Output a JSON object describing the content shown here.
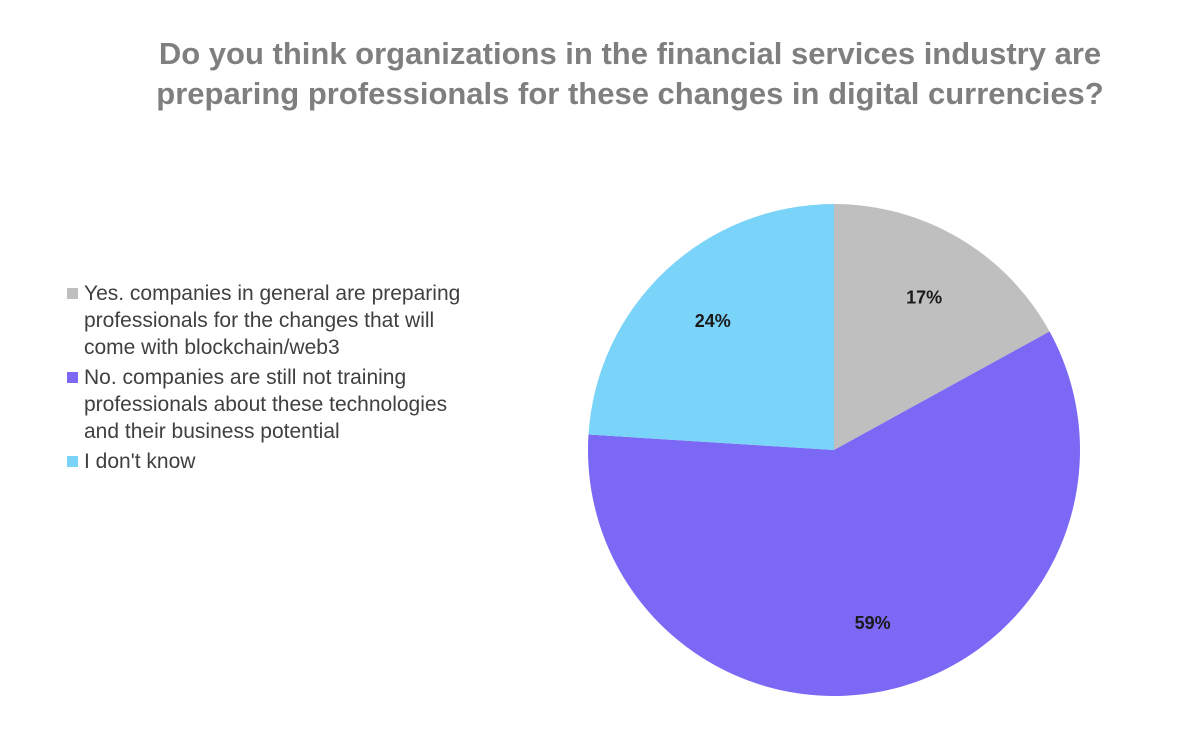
{
  "chart_data": {
    "type": "pie",
    "title": "Do you think organizations in the financial services industry are preparing professionals for these changes in digital currencies?",
    "legend_position": "left",
    "slices": [
      {
        "label": "Yes. companies in general are preparing professionals for the changes that will come with blockchain/web3",
        "value": 17,
        "value_label": "17%",
        "color": "#bfbfbf"
      },
      {
        "label": "No. companies are still not training professionals about these technologies and their business potential",
        "value": 59,
        "value_label": "59%",
        "color": "#7b68f5"
      },
      {
        "label": "I don't know",
        "value": 24,
        "value_label": "24%",
        "color": "#7ad3f8"
      }
    ]
  }
}
